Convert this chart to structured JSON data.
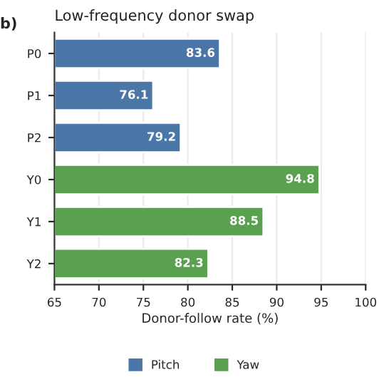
{
  "chart_data": {
    "type": "bar",
    "orientation": "horizontal",
    "title": "Low-frequency donor swap",
    "xlabel": "Donor-follow rate (%)",
    "annotations": [
      "b)"
    ],
    "categories": [
      "P0",
      "P1",
      "P2",
      "Y0",
      "Y1",
      "Y2"
    ],
    "series": [
      {
        "name": "Pitch",
        "color": "#4a76a8",
        "values": [
          83.6,
          76.1,
          79.2,
          null,
          null,
          null
        ]
      },
      {
        "name": "Yaw",
        "color": "#59a14f",
        "values": [
          null,
          null,
          null,
          94.8,
          88.5,
          82.3
        ]
      }
    ],
    "xlim": [
      65,
      100
    ],
    "xticks": [
      65,
      70,
      75,
      80,
      85,
      90,
      95,
      100
    ],
    "data_labels": true,
    "grid": "x",
    "legend": "bottom"
  }
}
